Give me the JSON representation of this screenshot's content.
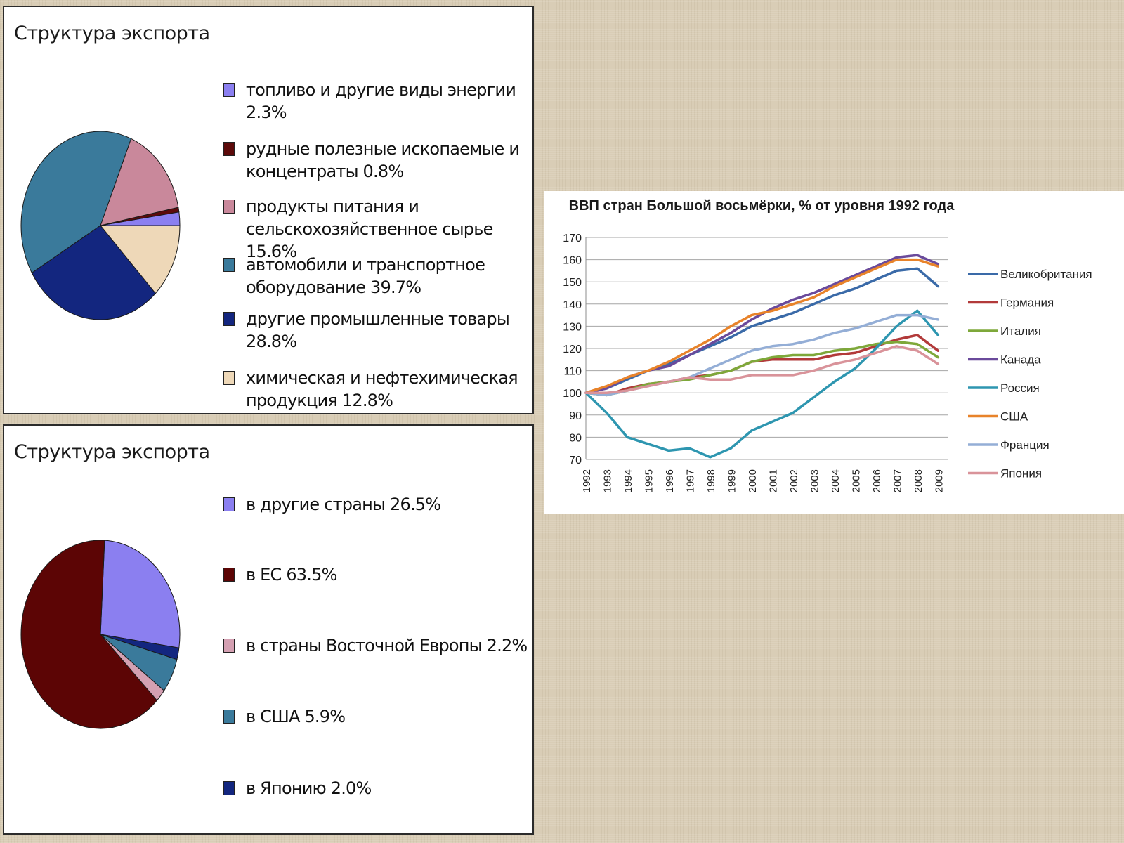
{
  "chart_data": [
    {
      "type": "pie",
      "title": "Структура экспорта",
      "slices": [
        {
          "label": "топливо и другие виды энергии",
          "value": 2.3,
          "value_label": "2.3%",
          "color": "#8b7ff0"
        },
        {
          "label": "рудные полезные ископаемые и концентраты",
          "value": 0.8,
          "value_label": "0.8%",
          "color": "#5c0a0a"
        },
        {
          "label": "продукты питания и сельскохозяйственное сырье",
          "value": 15.6,
          "value_label": "15.6%",
          "color": "#c9889b"
        },
        {
          "label": "автомобили и транспортное оборудование",
          "value": 39.7,
          "value_label": "39.7%",
          "color": "#3a7a9b"
        },
        {
          "label": "другие промышленные товары",
          "value": 28.8,
          "value_label": "28.8%",
          "color": "#13267f"
        },
        {
          "label": "химическая и нефтехимическая продукция",
          "value": 12.8,
          "value_label": "12.8%",
          "color": "#eed8b8"
        }
      ],
      "legend": "right"
    },
    {
      "type": "pie",
      "title": "Структура экспорта",
      "slices": [
        {
          "label": "в другие страны",
          "value": 26.5,
          "value_label": "26.5%",
          "color": "#8b7ff0"
        },
        {
          "label": "в ЕС",
          "value": 63.5,
          "value_label": "63.5%",
          "color": "#5c0505"
        },
        {
          "label": "в страны Восточной Европы",
          "value": 2.2,
          "value_label": "2.2%",
          "color": "#d4a0b2"
        },
        {
          "label": "в США",
          "value": 5.9,
          "value_label": "5.9%",
          "color": "#3a7a9b"
        },
        {
          "label": "в Японию",
          "value": 2.0,
          "value_label": "2.0%",
          "color": "#13267f"
        }
      ],
      "legend": "right"
    },
    {
      "type": "line",
      "title": "ВВП стран Большой восьмёрки, % от уровня 1992 года",
      "xlabel": "",
      "ylabel": "",
      "x": [
        "1992",
        "1993",
        "1994",
        "1995",
        "1996",
        "1997",
        "1998",
        "1999",
        "2000",
        "2001",
        "2002",
        "2003",
        "2004",
        "2005",
        "2006",
        "2007",
        "2008",
        "2009"
      ],
      "yticks": [
        "70",
        "80",
        "90",
        "100",
        "110",
        "120",
        "130",
        "140",
        "150",
        "160",
        "170"
      ],
      "ylim": [
        70,
        170
      ],
      "grid": true,
      "legend": "right",
      "series": [
        {
          "name": "Великобритания",
          "color": "#3a6aa8",
          "values": [
            100,
            102,
            106,
            110,
            113,
            117,
            121,
            125,
            130,
            133,
            136,
            140,
            144,
            147,
            151,
            155,
            156,
            148
          ]
        },
        {
          "name": "Германия",
          "color": "#b23a3a",
          "values": [
            100,
            99,
            102,
            104,
            105,
            107,
            108,
            110,
            114,
            115,
            115,
            115,
            117,
            118,
            121,
            124,
            126,
            119
          ]
        },
        {
          "name": "Италия",
          "color": "#7ea83a",
          "values": [
            100,
            99,
            101,
            104,
            105,
            106,
            108,
            110,
            114,
            116,
            117,
            117,
            119,
            120,
            122,
            123,
            122,
            116
          ]
        },
        {
          "name": "Канада",
          "color": "#6a4a9b",
          "values": [
            100,
            102,
            107,
            110,
            112,
            117,
            122,
            127,
            133,
            138,
            142,
            145,
            149,
            153,
            157,
            161,
            162,
            158
          ]
        },
        {
          "name": "Россия",
          "color": "#2e96b0",
          "values": [
            100,
            91,
            80,
            77,
            74,
            75,
            71,
            75,
            83,
            87,
            91,
            98,
            105,
            111,
            120,
            130,
            137,
            126
          ]
        },
        {
          "name": "США",
          "color": "#e8832a",
          "values": [
            100,
            103,
            107,
            110,
            114,
            119,
            124,
            130,
            135,
            137,
            140,
            143,
            148,
            152,
            156,
            160,
            160,
            157
          ]
        },
        {
          "name": "Франция",
          "color": "#94aed6",
          "values": [
            100,
            99,
            101,
            103,
            105,
            107,
            111,
            115,
            119,
            121,
            122,
            124,
            127,
            129,
            132,
            135,
            135,
            133
          ]
        },
        {
          "name": "Япония",
          "color": "#d9939a",
          "values": [
            100,
            100,
            101,
            103,
            105,
            107,
            106,
            106,
            108,
            108,
            108,
            110,
            113,
            115,
            118,
            121,
            119,
            113
          ]
        }
      ]
    }
  ]
}
